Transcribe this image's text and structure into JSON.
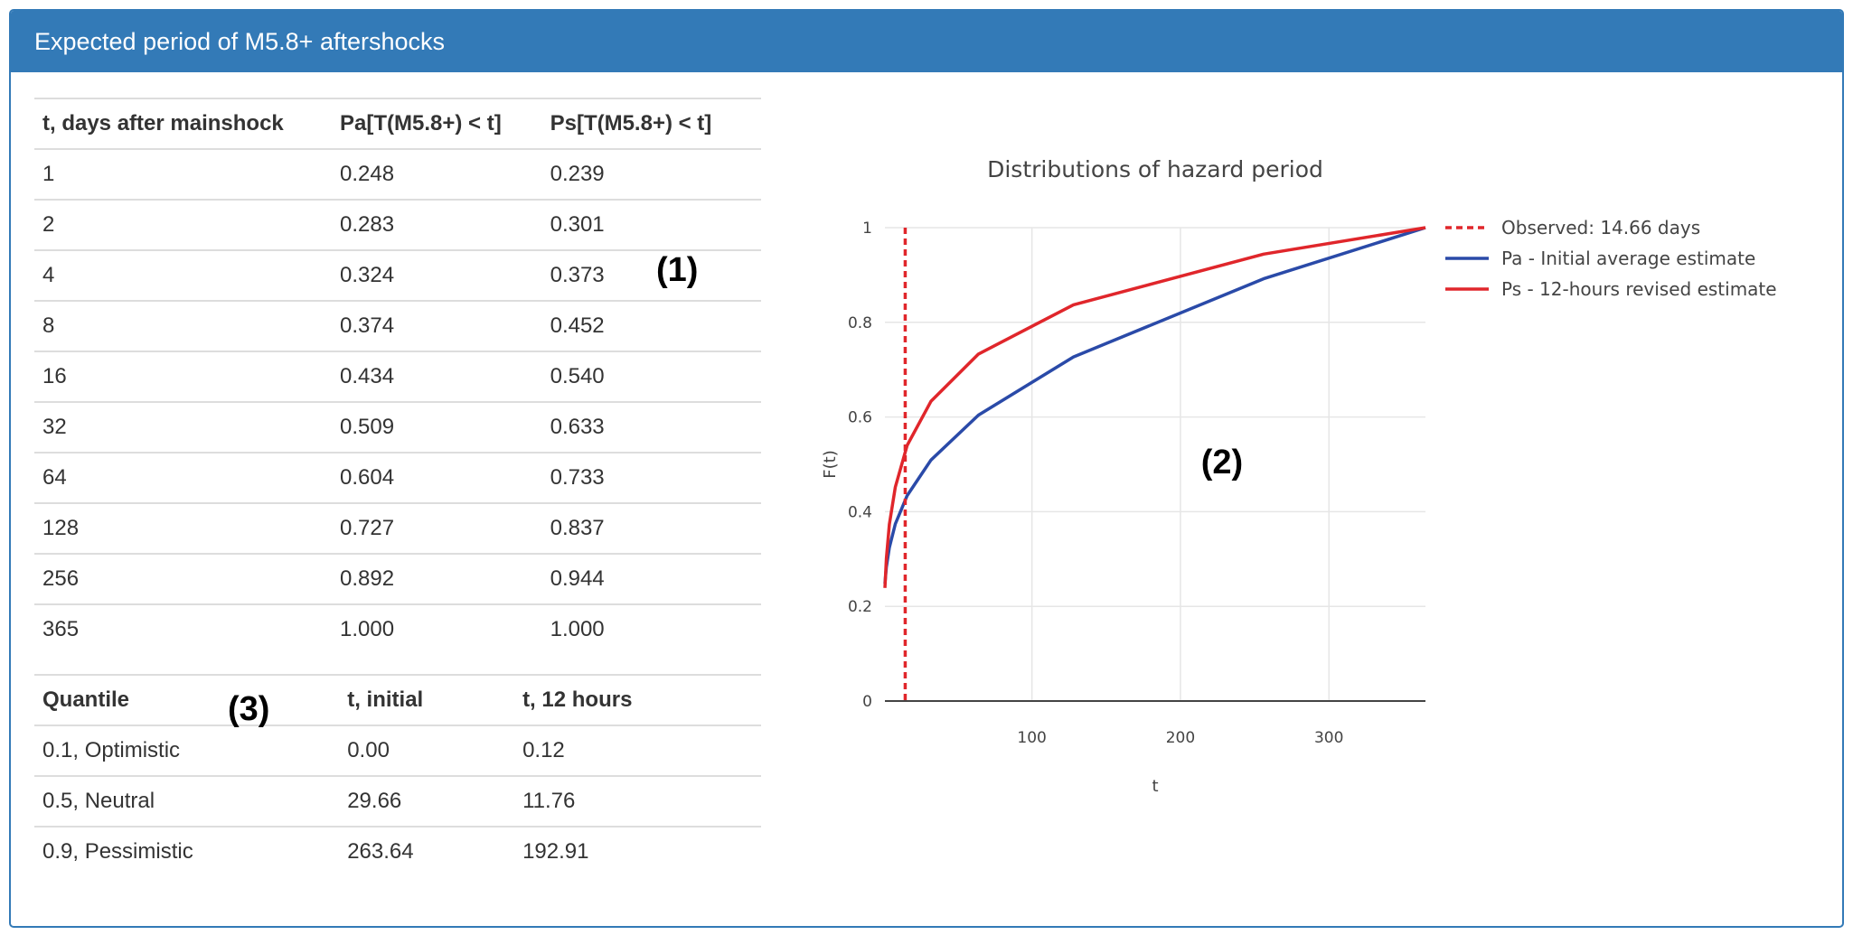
{
  "panel": {
    "title": "Expected period of M5.8+ aftershocks"
  },
  "probability_table": {
    "headers": [
      "t, days after mainshock",
      "Pa[T(M5.8+) < t]",
      "Ps[T(M5.8+) < t]"
    ],
    "rows": [
      [
        "1",
        "0.248",
        "0.239"
      ],
      [
        "2",
        "0.283",
        "0.301"
      ],
      [
        "4",
        "0.324",
        "0.373"
      ],
      [
        "8",
        "0.374",
        "0.452"
      ],
      [
        "16",
        "0.434",
        "0.540"
      ],
      [
        "32",
        "0.509",
        "0.633"
      ],
      [
        "64",
        "0.604",
        "0.733"
      ],
      [
        "128",
        "0.727",
        "0.837"
      ],
      [
        "256",
        "0.892",
        "0.944"
      ],
      [
        "365",
        "1.000",
        "1.000"
      ]
    ]
  },
  "quantile_table": {
    "headers": [
      "Quantile",
      "t, initial",
      "t, 12 hours"
    ],
    "rows": [
      [
        "0.1, Optimistic",
        "0.00",
        "0.12"
      ],
      [
        "0.5, Neutral",
        "29.66",
        "11.76"
      ],
      [
        "0.9, Pessimistic",
        "263.64",
        "192.91"
      ]
    ]
  },
  "annotations": {
    "a1": "(1)",
    "a2": "(2)",
    "a3": "(3)"
  },
  "chart_data": {
    "type": "line",
    "title": "Distributions of hazard period",
    "xlabel": "t",
    "ylabel": "F(t)",
    "xlim": [
      1,
      365
    ],
    "ylim": [
      0,
      1
    ],
    "xticks": [
      100,
      200,
      300
    ],
    "yticks": [
      0,
      0.2,
      0.4,
      0.6,
      0.8,
      1
    ],
    "ytick_labels": [
      "0",
      "0.2",
      "0.4",
      "0.6",
      "0.8",
      "1"
    ],
    "grid": true,
    "legend_position": "top-right",
    "x": [
      1,
      2,
      4,
      8,
      16,
      32,
      64,
      128,
      256,
      365
    ],
    "series": [
      {
        "name": "Pa - Initial average estimate",
        "color": "#2a4aa8",
        "values": [
          0.248,
          0.283,
          0.324,
          0.374,
          0.434,
          0.509,
          0.604,
          0.727,
          0.892,
          1.0
        ]
      },
      {
        "name": "Ps - 12-hours revised estimate",
        "color": "#e0262b",
        "values": [
          0.239,
          0.301,
          0.373,
          0.452,
          0.54,
          0.633,
          0.733,
          0.837,
          0.944,
          1.0
        ]
      }
    ],
    "vline": {
      "name": "Observed: 14.66 days",
      "x": 14.66,
      "color": "#e0262b"
    }
  }
}
